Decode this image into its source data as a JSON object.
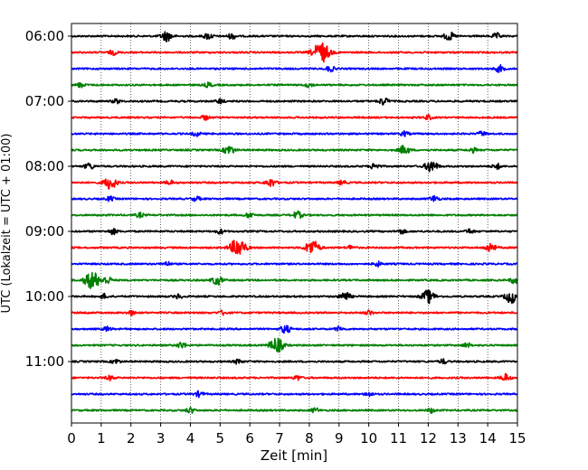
{
  "chart_data": {
    "type": "line",
    "title": "",
    "xlabel": "Zeit  [min]",
    "ylabel": "UTC (Lokalzeit = UTC + 01:00)",
    "xlim": [
      0,
      15
    ],
    "x_ticks": [
      "0",
      "1",
      "2",
      "3",
      "4",
      "5",
      "6",
      "7",
      "8",
      "9",
      "10",
      "11",
      "12",
      "13",
      "14",
      "15"
    ],
    "y_ticks": [
      "06:00",
      "07:00",
      "08:00",
      "09:00",
      "10:00",
      "11:00"
    ],
    "grid": "vertical dotted",
    "colors": [
      "#000000",
      "#ff0000",
      "#0000ff",
      "#008000"
    ],
    "trace_interval_min": 15,
    "first_trace": "06:00",
    "traces": [
      {
        "start": "06:00",
        "color_index": 0,
        "events": [
          [
            3.2,
            5.5
          ],
          [
            4.6,
            3.5
          ],
          [
            5.4,
            3
          ],
          [
            12.7,
            4.5
          ],
          [
            14.3,
            3
          ]
        ]
      },
      {
        "start": "06:15",
        "color_index": 1,
        "events": [
          [
            8.4,
            11
          ],
          [
            1.4,
            2.5
          ]
        ]
      },
      {
        "start": "06:30",
        "color_index": 2,
        "events": [
          [
            8.7,
            3
          ],
          [
            14.4,
            3.5
          ]
        ]
      },
      {
        "start": "06:45",
        "color_index": 3,
        "events": [
          [
            0.3,
            2.5
          ],
          [
            4.6,
            2.5
          ],
          [
            8.0,
            2.5
          ]
        ]
      },
      {
        "start": "07:00",
        "color_index": 0,
        "events": [
          [
            10.5,
            4
          ],
          [
            1.5,
            2.5
          ],
          [
            5.0,
            2.5
          ]
        ]
      },
      {
        "start": "07:15",
        "color_index": 1,
        "events": [
          [
            4.5,
            2.5
          ],
          [
            12.0,
            2.5
          ]
        ]
      },
      {
        "start": "07:30",
        "color_index": 2,
        "events": [
          [
            4.2,
            2.5
          ],
          [
            11.2,
            2.5
          ],
          [
            13.8,
            2.5
          ]
        ]
      },
      {
        "start": "07:45",
        "color_index": 3,
        "events": [
          [
            5.3,
            5
          ],
          [
            11.2,
            5
          ],
          [
            13.5,
            2.5
          ]
        ]
      },
      {
        "start": "08:00",
        "color_index": 0,
        "events": [
          [
            12.1,
            6.5
          ],
          [
            10.2,
            3.5
          ],
          [
            0.6,
            3.5
          ],
          [
            14.3,
            3
          ]
        ]
      },
      {
        "start": "08:15",
        "color_index": 1,
        "events": [
          [
            1.3,
            7
          ],
          [
            6.7,
            4.5
          ],
          [
            3.3,
            2.5
          ],
          [
            9.1,
            2.5
          ]
        ]
      },
      {
        "start": "08:30",
        "color_index": 2,
        "events": [
          [
            12.2,
            3.5
          ],
          [
            1.3,
            2.5
          ],
          [
            4.2,
            2.5
          ]
        ]
      },
      {
        "start": "08:45",
        "color_index": 3,
        "events": [
          [
            7.6,
            4
          ],
          [
            6.0,
            3
          ],
          [
            2.3,
            2.5
          ]
        ]
      },
      {
        "start": "09:00",
        "color_index": 0,
        "events": [
          [
            1.4,
            3
          ],
          [
            5.0,
            2.5
          ],
          [
            11.1,
            2.5
          ],
          [
            13.4,
            2.5
          ]
        ]
      },
      {
        "start": "09:15",
        "color_index": 1,
        "events": [
          [
            5.6,
            10
          ],
          [
            8.1,
            8
          ],
          [
            14.1,
            5
          ],
          [
            9.4,
            2.5
          ]
        ]
      },
      {
        "start": "09:30",
        "color_index": 2,
        "events": [
          [
            3.2,
            2.5
          ],
          [
            10.3,
            2.5
          ]
        ]
      },
      {
        "start": "09:45",
        "color_index": 3,
        "events": [
          [
            0.7,
            9.5
          ],
          [
            4.9,
            5
          ],
          [
            1.2,
            4
          ],
          [
            14.9,
            3.5
          ]
        ]
      },
      {
        "start": "10:00",
        "color_index": 0,
        "events": [
          [
            12.0,
            7
          ],
          [
            14.8,
            7
          ],
          [
            9.2,
            5
          ],
          [
            1.1,
            2.5
          ],
          [
            3.6,
            2.5
          ]
        ]
      },
      {
        "start": "10:15",
        "color_index": 1,
        "events": [
          [
            2.0,
            2.5
          ],
          [
            5.1,
            2.5
          ],
          [
            10.0,
            2.5
          ]
        ]
      },
      {
        "start": "10:30",
        "color_index": 2,
        "events": [
          [
            7.2,
            4.5
          ],
          [
            1.2,
            2.5
          ],
          [
            9.0,
            2.5
          ]
        ]
      },
      {
        "start": "10:45",
        "color_index": 3,
        "events": [
          [
            6.9,
            8
          ],
          [
            3.7,
            3.5
          ],
          [
            13.3,
            2.5
          ]
        ]
      },
      {
        "start": "11:00",
        "color_index": 0,
        "events": [
          [
            5.6,
            2.5
          ],
          [
            12.5,
            2.5
          ],
          [
            1.5,
            2.5
          ]
        ]
      },
      {
        "start": "11:15",
        "color_index": 1,
        "events": [
          [
            14.6,
            4
          ],
          [
            1.3,
            2.5
          ],
          [
            7.6,
            2.5
          ]
        ]
      },
      {
        "start": "11:30",
        "color_index": 2,
        "events": [
          [
            4.3,
            3
          ],
          [
            10.0,
            2.5
          ]
        ]
      },
      {
        "start": "11:45",
        "color_index": 3,
        "events": [
          [
            4.0,
            3
          ],
          [
            8.2,
            2.5
          ],
          [
            12.1,
            2.5
          ]
        ]
      }
    ]
  }
}
